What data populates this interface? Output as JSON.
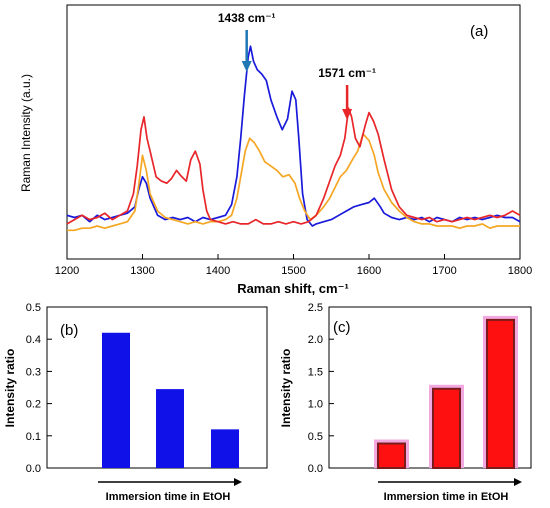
{
  "chart_data": [
    {
      "type": "line",
      "panel_label": "(a)",
      "xlabel": "Raman shift, cm⁻¹",
      "ylabel": "Raman Intensity (a.u.)",
      "xlim": [
        1200,
        1800
      ],
      "xticks": [
        "1200",
        "1300",
        "1400",
        "1500",
        "1600",
        "1700",
        "1800"
      ],
      "grid": false,
      "annotations": [
        {
          "text": "1438 cm⁻¹",
          "x": 1438,
          "color": "#1f77b4"
        },
        {
          "text": "1571 cm⁻¹",
          "x": 1571,
          "color": "#e8262a"
        }
      ],
      "series": [
        {
          "color": "#1a1adb",
          "points": [
            [
              1200,
              12
            ],
            [
              1210,
              11
            ],
            [
              1220,
              12
            ],
            [
              1230,
              9
            ],
            [
              1240,
              12
            ],
            [
              1250,
              10
            ],
            [
              1260,
              11
            ],
            [
              1270,
              12
            ],
            [
              1280,
              13
            ],
            [
              1290,
              16
            ],
            [
              1295,
              24
            ],
            [
              1300,
              30
            ],
            [
              1305,
              27
            ],
            [
              1310,
              20
            ],
            [
              1320,
              12
            ],
            [
              1330,
              10
            ],
            [
              1340,
              11
            ],
            [
              1350,
              10
            ],
            [
              1360,
              11
            ],
            [
              1370,
              9
            ],
            [
              1380,
              11
            ],
            [
              1390,
              10
            ],
            [
              1400,
              11
            ],
            [
              1410,
              12
            ],
            [
              1418,
              17
            ],
            [
              1425,
              30
            ],
            [
              1430,
              48
            ],
            [
              1435,
              68
            ],
            [
              1440,
              86
            ],
            [
              1443,
              91
            ],
            [
              1447,
              84
            ],
            [
              1452,
              80
            ],
            [
              1458,
              78
            ],
            [
              1464,
              75
            ],
            [
              1470,
              66
            ],
            [
              1478,
              58
            ],
            [
              1485,
              52
            ],
            [
              1492,
              57
            ],
            [
              1498,
              70
            ],
            [
              1503,
              66
            ],
            [
              1507,
              48
            ],
            [
              1512,
              22
            ],
            [
              1518,
              10
            ],
            [
              1525,
              7
            ],
            [
              1530,
              8
            ],
            [
              1540,
              9
            ],
            [
              1550,
              10
            ],
            [
              1560,
              12
            ],
            [
              1570,
              14
            ],
            [
              1580,
              16
            ],
            [
              1590,
              17
            ],
            [
              1600,
              18
            ],
            [
              1607,
              20
            ],
            [
              1615,
              16
            ],
            [
              1620,
              13
            ],
            [
              1630,
              11
            ],
            [
              1640,
              10
            ],
            [
              1650,
              11
            ],
            [
              1660,
              10
            ],
            [
              1670,
              11
            ],
            [
              1680,
              9
            ],
            [
              1690,
              11
            ],
            [
              1700,
              10
            ],
            [
              1710,
              9
            ],
            [
              1720,
              11
            ],
            [
              1730,
              10
            ],
            [
              1740,
              11
            ],
            [
              1750,
              10
            ],
            [
              1760,
              11
            ],
            [
              1770,
              12
            ],
            [
              1780,
              11
            ],
            [
              1790,
              11
            ],
            [
              1800,
              9
            ]
          ]
        },
        {
          "color": "#f5a623",
          "points": [
            [
              1200,
              5
            ],
            [
              1210,
              5
            ],
            [
              1220,
              6
            ],
            [
              1230,
              6
            ],
            [
              1240,
              7
            ],
            [
              1250,
              6
            ],
            [
              1260,
              7
            ],
            [
              1270,
              8
            ],
            [
              1280,
              9
            ],
            [
              1290,
              14
            ],
            [
              1295,
              26
            ],
            [
              1300,
              40
            ],
            [
              1305,
              33
            ],
            [
              1310,
              22
            ],
            [
              1320,
              14
            ],
            [
              1330,
              11
            ],
            [
              1340,
              10
            ],
            [
              1350,
              9
            ],
            [
              1360,
              8
            ],
            [
              1370,
              9
            ],
            [
              1380,
              8
            ],
            [
              1390,
              9
            ],
            [
              1400,
              9
            ],
            [
              1410,
              10
            ],
            [
              1418,
              12
            ],
            [
              1425,
              20
            ],
            [
              1430,
              30
            ],
            [
              1436,
              42
            ],
            [
              1442,
              48
            ],
            [
              1448,
              46
            ],
            [
              1455,
              42
            ],
            [
              1462,
              37
            ],
            [
              1470,
              35
            ],
            [
              1478,
              33
            ],
            [
              1486,
              30
            ],
            [
              1494,
              31
            ],
            [
              1502,
              27
            ],
            [
              1508,
              20
            ],
            [
              1515,
              14
            ],
            [
              1522,
              10
            ],
            [
              1530,
              12
            ],
            [
              1540,
              16
            ],
            [
              1548,
              20
            ],
            [
              1555,
              25
            ],
            [
              1562,
              30
            ],
            [
              1570,
              33
            ],
            [
              1578,
              38
            ],
            [
              1585,
              42
            ],
            [
              1592,
              50
            ],
            [
              1600,
              47
            ],
            [
              1607,
              40
            ],
            [
              1612,
              32
            ],
            [
              1620,
              24
            ],
            [
              1630,
              18
            ],
            [
              1640,
              14
            ],
            [
              1650,
              11
            ],
            [
              1660,
              9
            ],
            [
              1670,
              8
            ],
            [
              1680,
              8
            ],
            [
              1690,
              7
            ],
            [
              1700,
              7
            ],
            [
              1710,
              7
            ],
            [
              1720,
              6
            ],
            [
              1730,
              7
            ],
            [
              1740,
              7
            ],
            [
              1750,
              8
            ],
            [
              1760,
              6
            ],
            [
              1770,
              7
            ],
            [
              1780,
              7
            ],
            [
              1790,
              7
            ],
            [
              1800,
              7
            ]
          ]
        },
        {
          "color": "#e8262a",
          "points": [
            [
              1200,
              8
            ],
            [
              1210,
              10
            ],
            [
              1220,
              12
            ],
            [
              1230,
              10
            ],
            [
              1240,
              11
            ],
            [
              1250,
              13
            ],
            [
              1260,
              10
            ],
            [
              1270,
              12
            ],
            [
              1280,
              14
            ],
            [
              1288,
              22
            ],
            [
              1293,
              35
            ],
            [
              1298,
              52
            ],
            [
              1302,
              58
            ],
            [
              1306,
              48
            ],
            [
              1310,
              42
            ],
            [
              1318,
              30
            ],
            [
              1325,
              28
            ],
            [
              1332,
              27
            ],
            [
              1338,
              29
            ],
            [
              1345,
              33
            ],
            [
              1352,
              30
            ],
            [
              1358,
              28
            ],
            [
              1364,
              38
            ],
            [
              1370,
              42
            ],
            [
              1376,
              36
            ],
            [
              1380,
              24
            ],
            [
              1385,
              14
            ],
            [
              1390,
              10
            ],
            [
              1400,
              9
            ],
            [
              1410,
              8
            ],
            [
              1420,
              9
            ],
            [
              1430,
              8
            ],
            [
              1440,
              8
            ],
            [
              1450,
              10
            ],
            [
              1460,
              8
            ],
            [
              1470,
              8
            ],
            [
              1480,
              9
            ],
            [
              1490,
              8
            ],
            [
              1500,
              9
            ],
            [
              1510,
              8
            ],
            [
              1520,
              9
            ],
            [
              1530,
              12
            ],
            [
              1540,
              20
            ],
            [
              1548,
              28
            ],
            [
              1555,
              35
            ],
            [
              1562,
              40
            ],
            [
              1568,
              48
            ],
            [
              1573,
              62
            ],
            [
              1577,
              58
            ],
            [
              1582,
              48
            ],
            [
              1588,
              44
            ],
            [
              1595,
              54
            ],
            [
              1600,
              60
            ],
            [
              1606,
              56
            ],
            [
              1612,
              50
            ],
            [
              1620,
              38
            ],
            [
              1630,
              24
            ],
            [
              1640,
              16
            ],
            [
              1650,
              12
            ],
            [
              1660,
              11
            ],
            [
              1670,
              10
            ],
            [
              1680,
              11
            ],
            [
              1690,
              9
            ],
            [
              1700,
              10
            ],
            [
              1710,
              9
            ],
            [
              1720,
              10
            ],
            [
              1730,
              11
            ],
            [
              1740,
              10
            ],
            [
              1750,
              11
            ],
            [
              1760,
              12
            ],
            [
              1770,
              11
            ],
            [
              1780,
              12
            ],
            [
              1790,
              14
            ],
            [
              1800,
              12
            ]
          ]
        }
      ]
    },
    {
      "type": "bar",
      "panel_label": "(b)",
      "xlabel": "Immersion time in EtOH",
      "ylabel": "Intensity ratio",
      "ylim": [
        0,
        0.5
      ],
      "yticks": [
        "0.0",
        "0.1",
        "0.2",
        "0.3",
        "0.4",
        "0.5"
      ],
      "values": [
        0.42,
        0.245,
        0.12
      ],
      "bar_color": "#1010e8",
      "grid": false
    },
    {
      "type": "bar",
      "panel_label": "(c)",
      "xlabel": "Immersion time in EtOH",
      "ylabel": "Intensity ratio",
      "ylim": [
        0,
        2.5
      ],
      "yticks": [
        "0.0",
        "0.5",
        "1.0",
        "1.5",
        "2.0",
        "2.5"
      ],
      "values": [
        0.38,
        1.23,
        2.3
      ],
      "bar_color": "#ff1010",
      "bar_edge_color": "#7a1c1c",
      "glow_color": "#f2a8e0",
      "grid": false
    }
  ]
}
